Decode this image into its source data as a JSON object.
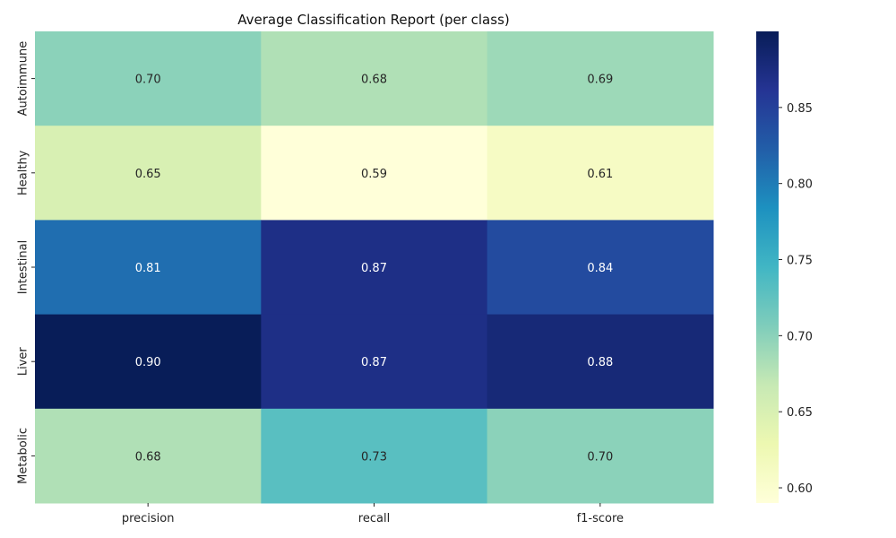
{
  "chart_data": {
    "type": "heatmap",
    "title": "Average Classification Report (per class)",
    "columns": [
      "precision",
      "recall",
      "f1-score"
    ],
    "rows": [
      "Autoimmune",
      "Healthy",
      "Intestinal",
      "Liver",
      "Metabolic"
    ],
    "values": [
      [
        0.7,
        0.68,
        0.69
      ],
      [
        0.65,
        0.59,
        0.61
      ],
      [
        0.81,
        0.87,
        0.84
      ],
      [
        0.9,
        0.87,
        0.88
      ],
      [
        0.68,
        0.73,
        0.7
      ]
    ],
    "cell_labels": [
      [
        "0.70",
        "0.68",
        "0.69"
      ],
      [
        "0.65",
        "0.59",
        "0.61"
      ],
      [
        "0.81",
        "0.87",
        "0.84"
      ],
      [
        "0.90",
        "0.87",
        "0.88"
      ],
      [
        "0.68",
        "0.73",
        "0.70"
      ]
    ],
    "colormap": "YlGnBu",
    "colorbar": {
      "vmin": 0.59,
      "vmax": 0.9,
      "ticks": [
        0.6,
        0.65,
        0.7,
        0.75,
        0.8,
        0.85
      ],
      "tick_labels": [
        "0.60",
        "0.65",
        "0.70",
        "0.75",
        "0.80",
        "0.85"
      ]
    },
    "legend": "colorbar-right"
  }
}
